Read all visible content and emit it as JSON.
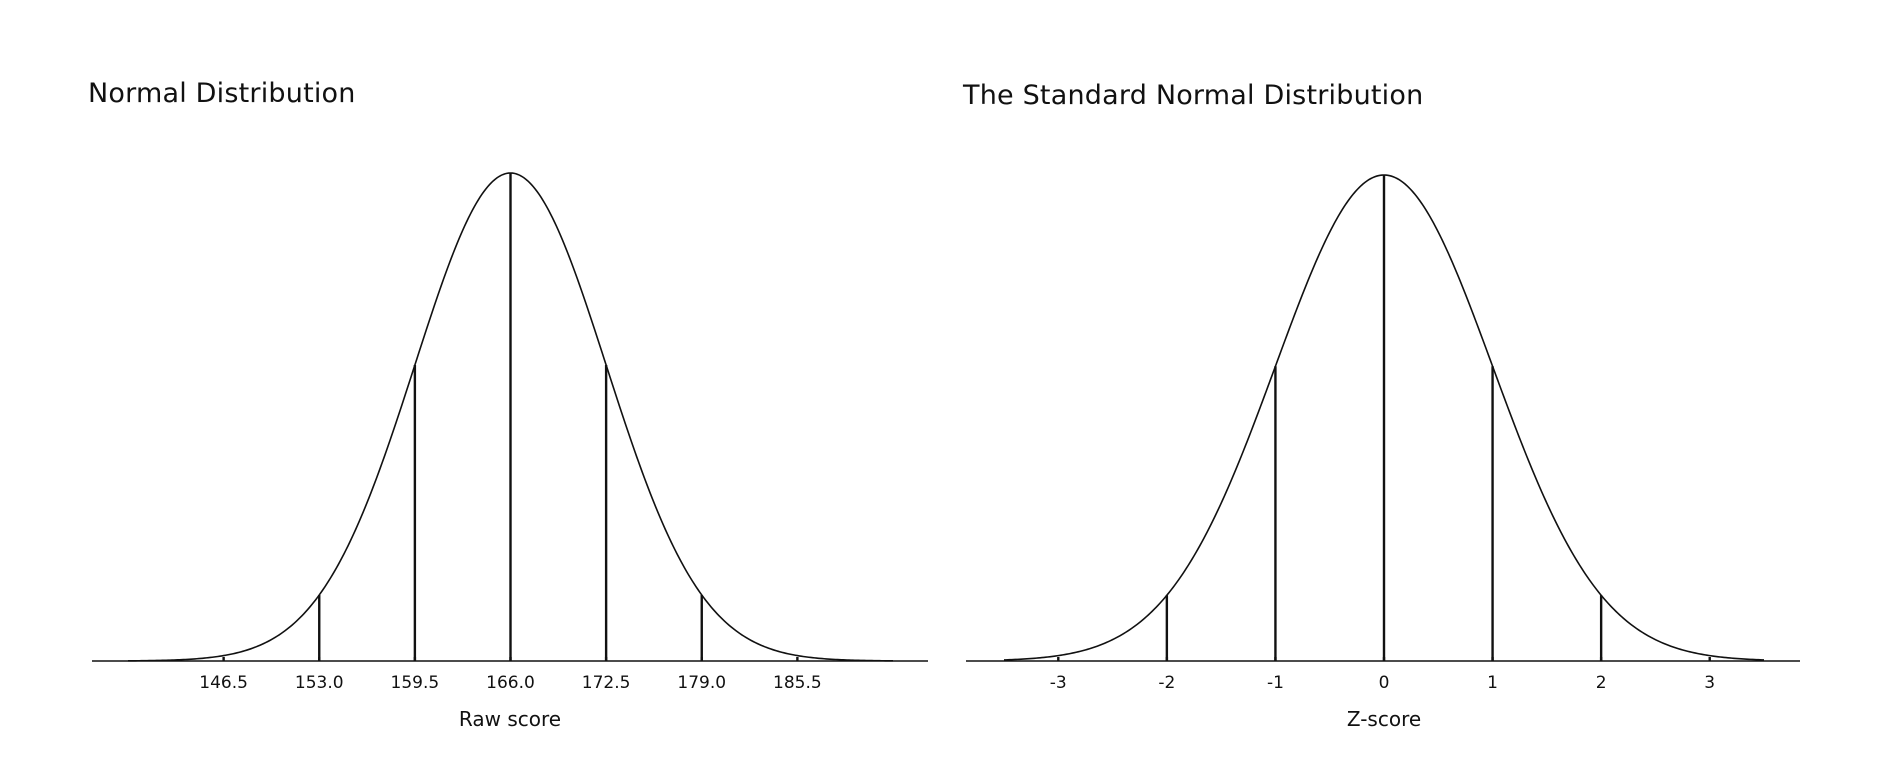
{
  "chart_data": [
    {
      "type": "line",
      "title": "Normal Distribution",
      "xlabel": "Raw score",
      "ylabel": "",
      "distribution": {
        "mean": 166.0,
        "sd": 6.5
      },
      "xlim": [
        140.0,
        192.0
      ],
      "x_ticks": [
        146.5,
        153.0,
        159.5,
        166.0,
        172.5,
        179.0,
        185.5
      ],
      "x_tick_labels": [
        "146.5",
        "153.0",
        "159.5",
        "166.0",
        "172.5",
        "179.0",
        "185.5"
      ],
      "reference_lines": [
        153.0,
        159.5,
        166.0,
        172.5,
        179.0
      ],
      "grid": false,
      "legend": "none"
    },
    {
      "type": "line",
      "title": "The Standard Normal Distribution",
      "xlabel": "Z-score",
      "ylabel": "",
      "distribution": {
        "mean": 0,
        "sd": 1
      },
      "xlim": [
        -3.5,
        3.5
      ],
      "x_ticks": [
        -3,
        -2,
        -1,
        0,
        1,
        2,
        3
      ],
      "x_tick_labels": [
        "-3",
        "-2",
        "-1",
        "0",
        "1",
        "2",
        "3"
      ],
      "reference_lines": [
        -2,
        -1,
        0,
        1,
        2
      ],
      "grid": false,
      "legend": "none"
    }
  ],
  "colors": {
    "line": "#111111",
    "background": "#ffffff"
  }
}
